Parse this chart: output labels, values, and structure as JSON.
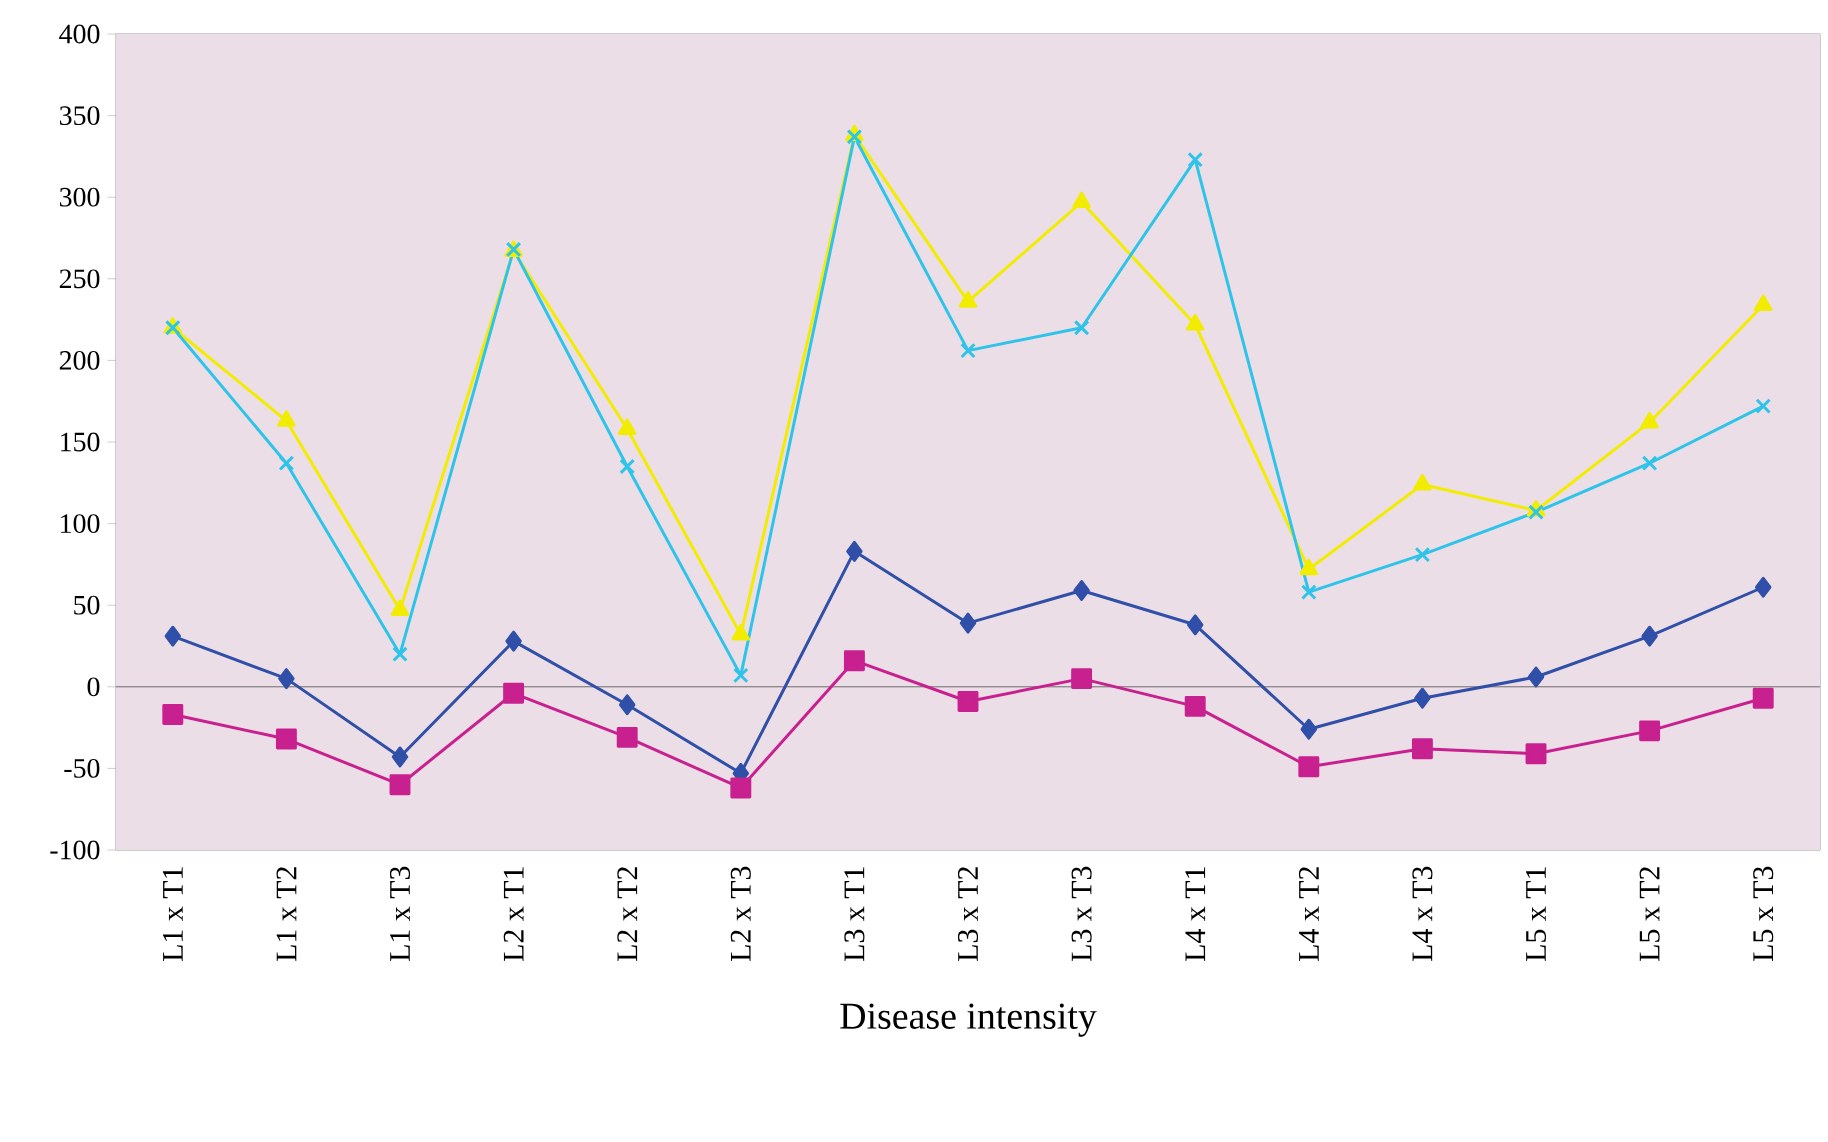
{
  "chart_data": {
    "type": "line",
    "xlabel": "Disease intensity",
    "categories": [
      "L1 x T1",
      "L1 x T2",
      "L1 x T3",
      "L2 x T1",
      "L2 x T2",
      "L2 x T3",
      "L3 x T1",
      "L3 x T2",
      "L3 x T3",
      "L4 x T1",
      "L4 x T2",
      "L4 x T3",
      "L5 x T1",
      "L5 x T2",
      "L5 x T3"
    ],
    "series": [
      {
        "color": "#f2ec00",
        "marker": "triangle",
        "values": [
          220,
          163,
          47,
          267,
          158,
          32,
          338,
          236,
          297,
          222,
          72,
          124,
          108,
          162,
          234
        ]
      },
      {
        "color": "#2ec4ea",
        "marker": "cross",
        "values": [
          220,
          137,
          20,
          268,
          135,
          7,
          337,
          206,
          220,
          323,
          58,
          81,
          107,
          137,
          172
        ]
      },
      {
        "color": "#2f4fa8",
        "marker": "diamond",
        "values": [
          31,
          5,
          -43,
          28,
          -11,
          -53,
          83,
          39,
          59,
          38,
          -26,
          -7,
          6,
          31,
          61
        ]
      },
      {
        "color": "#c8208f",
        "marker": "square",
        "values": [
          -17,
          -32,
          -60,
          -4,
          -31,
          -62,
          16,
          -9,
          5,
          -12,
          -49,
          -38,
          -41,
          -27,
          -7
        ]
      }
    ],
    "ylim": [
      -100,
      400
    ],
    "yticks": [
      -100,
      -50,
      0,
      50,
      100,
      150,
      200,
      250,
      300,
      350,
      400
    ],
    "line_style": "solid"
  }
}
